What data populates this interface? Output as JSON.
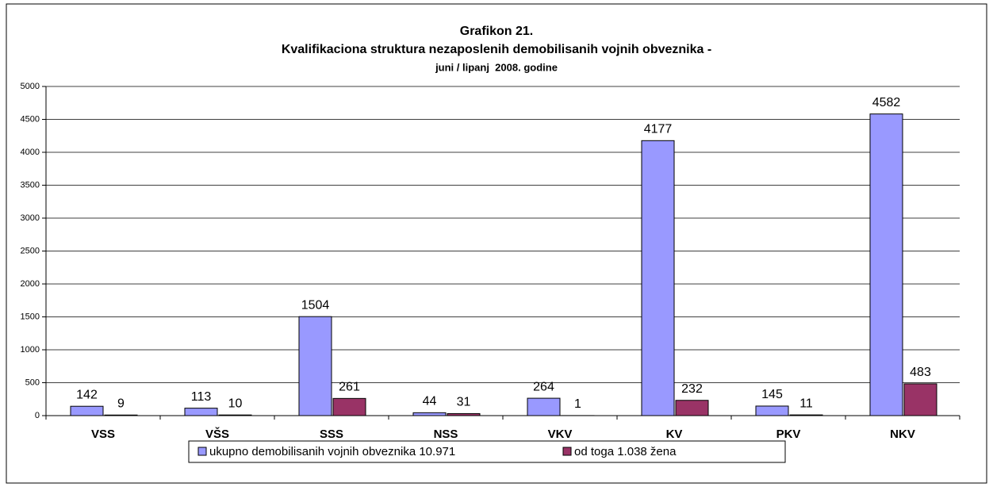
{
  "chart_data": {
    "type": "bar",
    "title": [
      "Grafikon 21.",
      "Kvalifikaciona struktura nezaposlenih demobilisanih vojnih obveznika -"
    ],
    "subtitle": "juni / lipanj  2008. godine",
    "categories": [
      "VSS",
      "VŠS",
      "SSS",
      "NSS",
      "VKV",
      "KV",
      "PKV",
      "NKV"
    ],
    "series": [
      {
        "name": "ukupno demobilisanih vojnih obveznika 10.971",
        "color": "#9999ff",
        "values": [
          142,
          113,
          1504,
          44,
          264,
          4177,
          145,
          4582
        ]
      },
      {
        "name": "od toga 1.038 žena",
        "color": "#993366",
        "values": [
          9,
          10,
          261,
          31,
          1,
          232,
          11,
          483
        ]
      }
    ],
    "ylim": [
      0,
      5000
    ],
    "yticks": [
      0,
      500,
      1000,
      1500,
      2000,
      2500,
      3000,
      3500,
      4000,
      4500,
      5000
    ],
    "grid": true,
    "legend": "bottom"
  }
}
